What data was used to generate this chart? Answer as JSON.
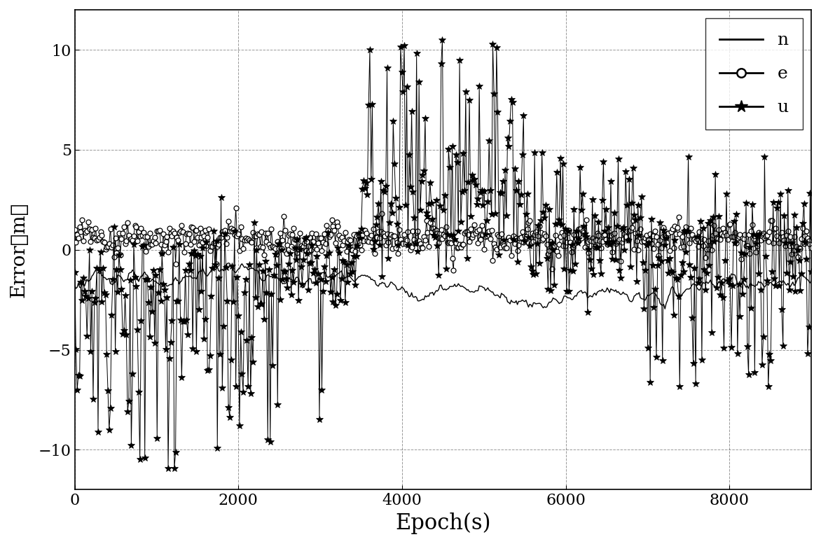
{
  "xlabel": "Epoch(s)",
  "ylabel": "Error（m）",
  "xlim": [
    0,
    9000
  ],
  "ylim": [
    -12,
    12
  ],
  "yticks": [
    -10,
    -5,
    0,
    5,
    10
  ],
  "xticks": [
    0,
    2000,
    4000,
    6000,
    8000
  ],
  "legend_labels": [
    "n",
    "e",
    "u"
  ],
  "legend_loc": "upper right",
  "xlabel_fontsize": 22,
  "ylabel_fontsize": 20,
  "tick_fontsize": 16,
  "legend_fontsize": 18,
  "figsize": [
    11.72,
    7.77
  ],
  "dpi": 100,
  "n_points": 600
}
